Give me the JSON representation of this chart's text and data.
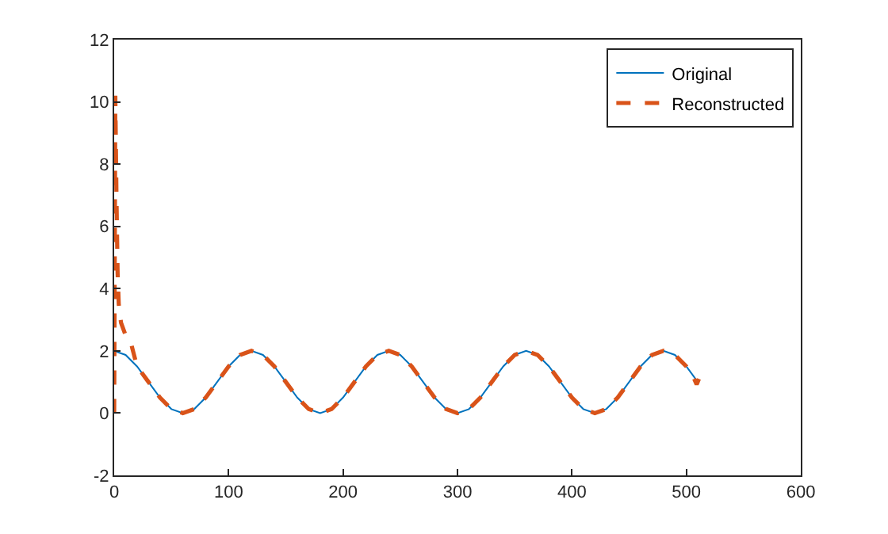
{
  "chart_data": {
    "type": "line",
    "xlim": [
      0,
      600
    ],
    "xticks": [
      0,
      100,
      200,
      300,
      400,
      500,
      600
    ],
    "ylim": [
      -2,
      12
    ],
    "yticks": [
      -2,
      0,
      2,
      4,
      6,
      8,
      10,
      12
    ],
    "grid": false,
    "legend": "top right",
    "marker": "none",
    "series": [
      {
        "name": "Original",
        "color": "#0072bd",
        "line_style": "solid",
        "x": [
          0,
          10,
          20,
          30,
          40,
          50,
          60,
          70,
          80,
          90,
          100,
          110,
          120,
          130,
          140,
          150,
          160,
          170,
          180,
          190,
          200,
          210,
          220,
          230,
          240,
          250,
          260,
          270,
          280,
          290,
          300,
          310,
          320,
          330,
          340,
          350,
          360,
          370,
          380,
          390,
          400,
          410,
          420,
          430,
          440,
          450,
          460,
          470,
          480,
          490,
          500,
          510,
          511
        ],
        "values": [
          2,
          1.87,
          1.5,
          1,
          0.5,
          0.13,
          0,
          0.13,
          0.5,
          1,
          1.5,
          1.87,
          2,
          1.87,
          1.5,
          1,
          0.5,
          0.13,
          0,
          0.13,
          0.5,
          1,
          1.5,
          1.87,
          2,
          1.87,
          1.5,
          1,
          0.5,
          0.13,
          0,
          0.13,
          0.5,
          1,
          1.5,
          1.87,
          2,
          1.87,
          1.5,
          1,
          0.5,
          0.13,
          0,
          0.13,
          0.5,
          1,
          1.5,
          1.87,
          2,
          1.87,
          1.5,
          1,
          0.95
        ]
      },
      {
        "name": "Reconstructed",
        "color": "#d95319",
        "line_style": "dashed",
        "x": [
          0,
          1,
          2,
          3,
          4,
          6,
          10,
          15,
          20,
          30,
          40,
          50,
          60,
          70,
          80,
          90,
          100,
          110,
          120,
          130,
          140,
          150,
          160,
          170,
          180,
          190,
          200,
          210,
          220,
          230,
          240,
          250,
          260,
          270,
          280,
          290,
          300,
          310,
          320,
          330,
          340,
          350,
          360,
          370,
          380,
          390,
          400,
          410,
          420,
          430,
          440,
          450,
          460,
          470,
          480,
          490,
          500,
          505,
          509,
          511
        ],
        "values": [
          0,
          10.2,
          7,
          4.5,
          3.5,
          2.9,
          2.5,
          2.2,
          1.5,
          1,
          0.5,
          0.13,
          0,
          0.13,
          0.5,
          1,
          1.5,
          1.87,
          2,
          1.87,
          1.5,
          1,
          0.5,
          0.13,
          0,
          0.13,
          0.5,
          1,
          1.5,
          1.87,
          2,
          1.87,
          1.5,
          1,
          0.5,
          0.13,
          0,
          0.13,
          0.5,
          1,
          1.5,
          1.87,
          2,
          1.87,
          1.5,
          1,
          0.5,
          0.13,
          0,
          0.13,
          0.5,
          1,
          1.5,
          1.87,
          2,
          1.87,
          1.5,
          1.26,
          0.92,
          1.1
        ]
      }
    ]
  }
}
